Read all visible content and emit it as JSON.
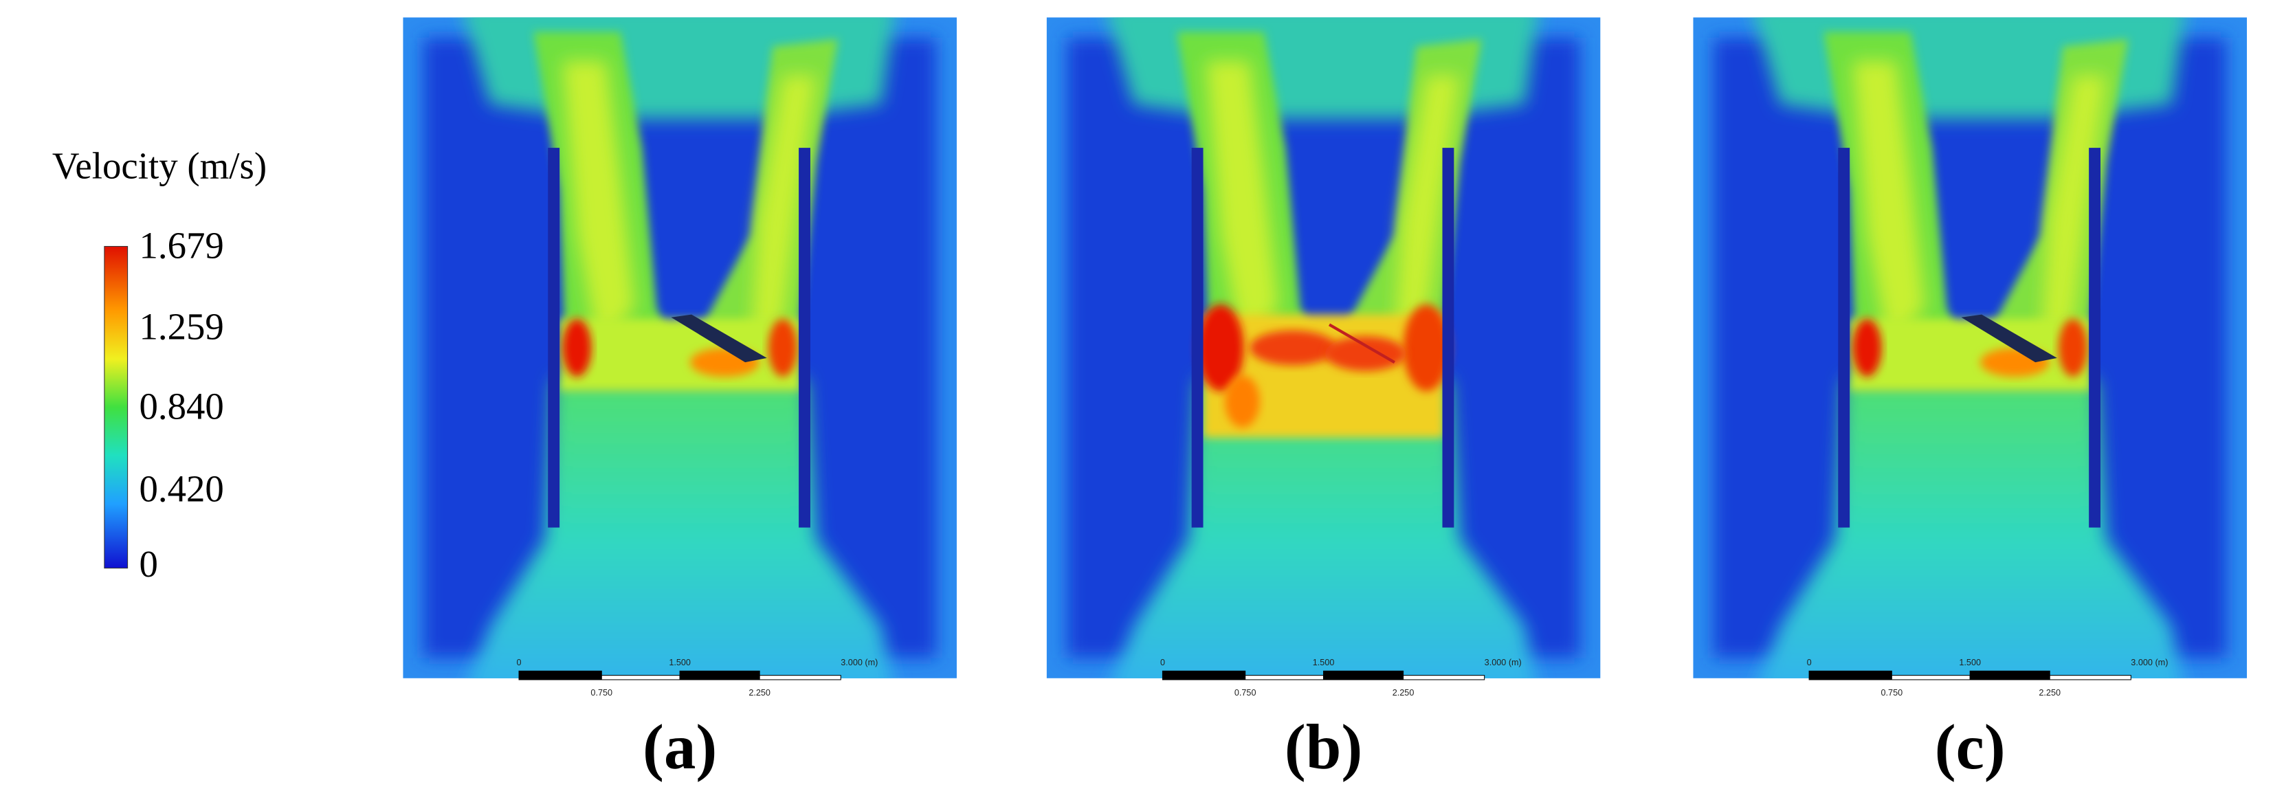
{
  "legend": {
    "title": "Velocity (m/s)",
    "ticks": [
      "1.679",
      "1.259",
      "0.840",
      "0.420",
      "0"
    ]
  },
  "panels": [
    {
      "label": "(a)",
      "scale_bar": {
        "top_labels": [
          "0",
          "1.500",
          "3.000 (m)"
        ],
        "bottom_labels": [
          "0.750",
          "2.250"
        ]
      }
    },
    {
      "label": "(b)",
      "scale_bar": {
        "top_labels": [
          "0",
          "1.500",
          "3.000 (m)"
        ],
        "bottom_labels": [
          "0.750",
          "2.250"
        ]
      }
    },
    {
      "label": "(c)",
      "scale_bar": {
        "top_labels": [
          "0",
          "1.500",
          "3.000 (m)"
        ],
        "bottom_labels": [
          "0.750",
          "2.250"
        ]
      }
    }
  ]
}
